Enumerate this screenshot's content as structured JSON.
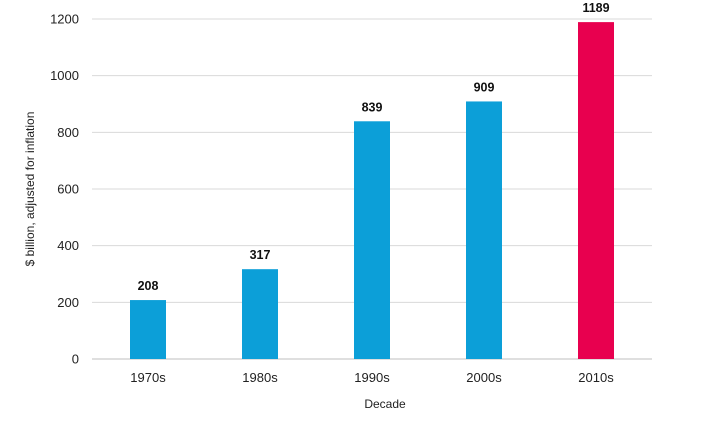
{
  "chart_data": {
    "type": "bar",
    "title": "",
    "xlabel": "Decade",
    "ylabel": "$ billion, adjusted for inflation",
    "categories": [
      "1970s",
      "1980s",
      "1990s",
      "2000s",
      "2010s"
    ],
    "values": [
      208,
      317,
      839,
      909,
      1189
    ],
    "data_labels": [
      "208",
      "317",
      "839",
      "909",
      "1189"
    ],
    "ylim": [
      0,
      1200
    ],
    "yticks": [
      0,
      200,
      400,
      600,
      800,
      1000,
      1200
    ],
    "ytick_labels": [
      "0",
      "200",
      "400",
      "600",
      "800",
      "1000",
      "1200"
    ],
    "grid": true,
    "legend": "none",
    "colors": {
      "bar": "#0c9fd8",
      "highlight": "#e8004f",
      "highlight_category": "2010s"
    }
  }
}
